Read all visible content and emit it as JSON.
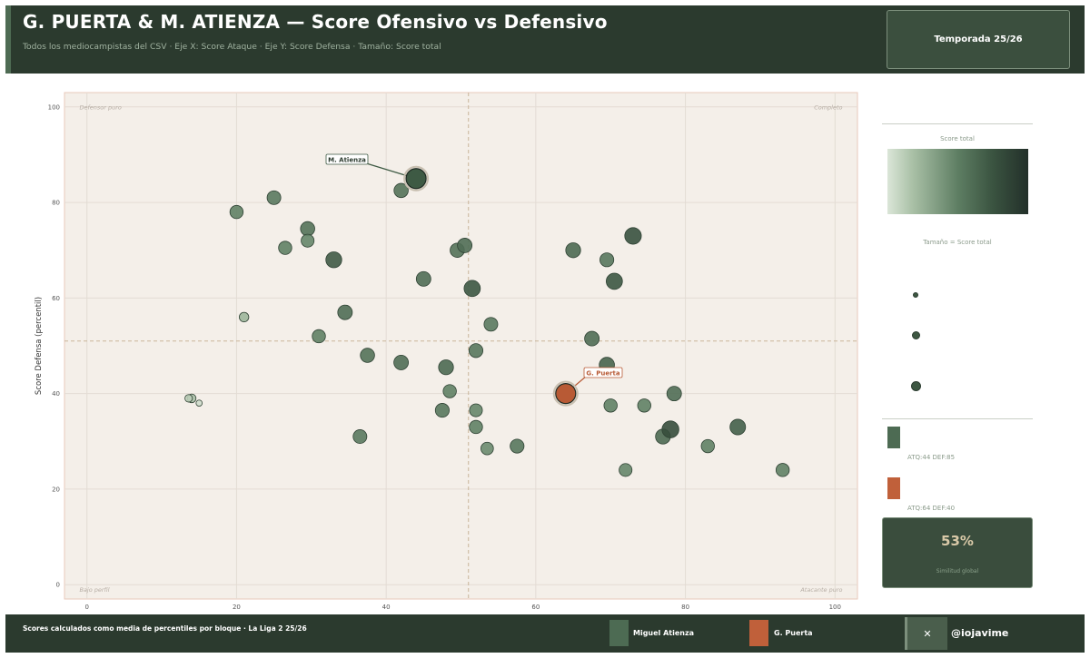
{
  "header": {
    "title": "G. PUERTA & M. ATIENZA — Score Ofensivo vs Defensivo",
    "subtitle": "Todos los mediocampistas del CSV · Eje X: Score Ataque · Eje Y: Score Defensa · Tamaño: Score total",
    "season": "Temporada 25/26"
  },
  "chart_data": {
    "type": "scatter",
    "ylabel": "Score Defensa (percentil)",
    "xlabel": "",
    "xlim": [
      -3,
      103
    ],
    "ylim": [
      -3,
      103
    ],
    "xticks": [
      0,
      20,
      40,
      60,
      80,
      100
    ],
    "yticks": [
      0,
      20,
      40,
      60,
      80,
      100
    ],
    "grid": true,
    "reference_lines": {
      "x": 51,
      "y": 51
    },
    "quadrant_labels": {
      "top_left": "Defensor puro",
      "top_right": "Completo",
      "bottom_left": "Bajo perfil",
      "bottom_right": "Atacante puro"
    },
    "points": [
      {
        "x": 14,
        "y": 39,
        "total": 25
      },
      {
        "x": 13.6,
        "y": 39,
        "total": 18
      },
      {
        "x": 15,
        "y": 38,
        "total": 10
      },
      {
        "x": 21,
        "y": 56,
        "total": 30
      },
      {
        "x": 20,
        "y": 78,
        "total": 52
      },
      {
        "x": 25,
        "y": 81,
        "total": 55
      },
      {
        "x": 26.5,
        "y": 70.5,
        "total": 52
      },
      {
        "x": 29.5,
        "y": 74.5,
        "total": 58
      },
      {
        "x": 29.5,
        "y": 72,
        "total": 50
      },
      {
        "x": 31,
        "y": 52,
        "total": 52
      },
      {
        "x": 33,
        "y": 68,
        "total": 68
      },
      {
        "x": 34.5,
        "y": 57,
        "total": 60
      },
      {
        "x": 36.5,
        "y": 31,
        "total": 55
      },
      {
        "x": 37.5,
        "y": 48,
        "total": 58
      },
      {
        "x": 42,
        "y": 46.5,
        "total": 60
      },
      {
        "x": 42,
        "y": 82.5,
        "total": 58
      },
      {
        "x": 45,
        "y": 64,
        "total": 60
      },
      {
        "x": 47.5,
        "y": 36.5,
        "total": 56
      },
      {
        "x": 48,
        "y": 45.5,
        "total": 62
      },
      {
        "x": 48.5,
        "y": 40.5,
        "total": 52
      },
      {
        "x": 49.5,
        "y": 70,
        "total": 58
      },
      {
        "x": 50.5,
        "y": 71,
        "total": 60
      },
      {
        "x": 51.5,
        "y": 62,
        "total": 70
      },
      {
        "x": 52,
        "y": 49,
        "total": 56
      },
      {
        "x": 52,
        "y": 36.5,
        "total": 50
      },
      {
        "x": 52,
        "y": 33,
        "total": 52
      },
      {
        "x": 54,
        "y": 54.5,
        "total": 55
      },
      {
        "x": 53.5,
        "y": 28.5,
        "total": 48
      },
      {
        "x": 57.5,
        "y": 29,
        "total": 56
      },
      {
        "x": 65,
        "y": 70,
        "total": 62
      },
      {
        "x": 67.5,
        "y": 51.5,
        "total": 60
      },
      {
        "x": 69.5,
        "y": 46,
        "total": 64
      },
      {
        "x": 69.5,
        "y": 68,
        "total": 56
      },
      {
        "x": 70,
        "y": 37.5,
        "total": 52
      },
      {
        "x": 70.5,
        "y": 63.5,
        "total": 70
      },
      {
        "x": 72,
        "y": 24,
        "total": 50
      },
      {
        "x": 73,
        "y": 73,
        "total": 72
      },
      {
        "x": 74.5,
        "y": 37.5,
        "total": 52
      },
      {
        "x": 77,
        "y": 31,
        "total": 62
      },
      {
        "x": 78,
        "y": 32.5,
        "total": 74
      },
      {
        "x": 78.5,
        "y": 40,
        "total": 60
      },
      {
        "x": 83,
        "y": 29,
        "total": 52
      },
      {
        "x": 87,
        "y": 33,
        "total": 66
      },
      {
        "x": 93,
        "y": 24,
        "total": 52
      }
    ],
    "highlights": [
      {
        "name": "M. Atienza",
        "x": 44,
        "y": 85,
        "total": 80,
        "color": "#3e5a44"
      },
      {
        "name": "G. Puerta",
        "x": 64,
        "y": 40,
        "total": 80,
        "color": "#b85a35"
      }
    ]
  },
  "sidebar": {
    "colorbar_title": "Score total",
    "size_title": "Tamaño = Score total",
    "atienza_stats": "ATQ:44  DEF:85",
    "puerta_stats": "ATQ:64  DEF:40",
    "similarity_value": "53%",
    "similarity_label": "Similitud global"
  },
  "footer": {
    "note": "Scores calculados como media de percentiles por bloque · La Liga 2 25/26",
    "legend_atienza": "Miguel Atienza",
    "legend_puerta": "G. Puerta",
    "x_label": "✕",
    "handle": "@iojavime"
  },
  "colors": {
    "atienza": "#4d6b53",
    "puerta": "#c0603a",
    "header_bg": "#2b3a2e",
    "plot_bg": "#f4efe9"
  }
}
